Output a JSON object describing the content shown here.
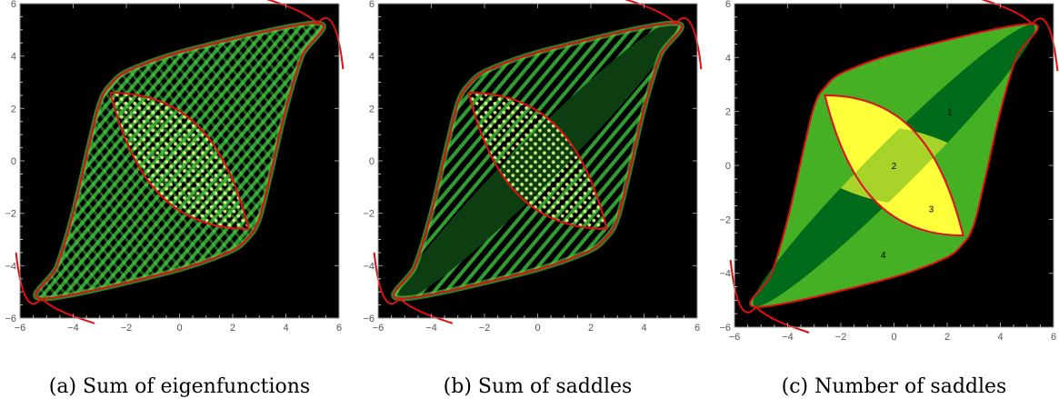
{
  "chart_data": [
    {
      "type": "heatmap",
      "caption": "(a) Sum of eigenfunctions",
      "xlim": [
        -6,
        6
      ],
      "ylim": [
        -6,
        6
      ],
      "xticks": [
        -6,
        -4,
        -2,
        0,
        2,
        4,
        6
      ],
      "yticks": [
        -6,
        -4,
        -2,
        0,
        2,
        4,
        6
      ],
      "background": "#000000",
      "fringe_color": "#4fd24a",
      "caustic_color": "#e01010",
      "outer_caustic": [
        [
          5.2,
          5.25
        ],
        [
          0.6,
          4.3
        ],
        [
          -1.8,
          3.5
        ],
        [
          -2.6,
          2.9
        ],
        [
          -3.0,
          2.2
        ],
        [
          -3.4,
          0.6
        ],
        [
          -4.0,
          -2.0
        ],
        [
          -4.6,
          -4.0
        ],
        [
          -5.2,
          -5.25
        ],
        [
          -0.6,
          -4.3
        ],
        [
          1.8,
          -3.5
        ],
        [
          2.6,
          -2.9
        ],
        [
          3.0,
          -2.2
        ],
        [
          3.4,
          -0.6
        ],
        [
          4.0,
          2.0
        ],
        [
          4.6,
          4.0
        ]
      ],
      "inner_caustic": [
        [
          -2.6,
          2.6
        ],
        [
          -1.6,
          2.2
        ],
        [
          0,
          1.2
        ],
        [
          1.3,
          -0.1
        ],
        [
          1.9,
          -1.0
        ],
        [
          2.6,
          -2.6
        ],
        [
          1.6,
          -2.2
        ],
        [
          0,
          -1.2
        ],
        [
          -1.3,
          0.1
        ],
        [
          -1.9,
          1.0
        ]
      ]
    },
    {
      "type": "heatmap",
      "caption": "(b) Sum of saddles",
      "xlim": [
        -6,
        6
      ],
      "ylim": [
        -6,
        6
      ],
      "xticks": [
        -6,
        -4,
        -2,
        0,
        2,
        4,
        6
      ],
      "yticks": [
        -6,
        -4,
        -2,
        0,
        2,
        4,
        6
      ],
      "background": "#000000",
      "fringe_color": "#4fd24a",
      "caustic_color": "#e01010"
    },
    {
      "type": "heatmap",
      "caption": "(c) Number of saddles",
      "xlim": [
        -6,
        6
      ],
      "ylim": [
        -6,
        6
      ],
      "xticks": [
        -6,
        -4,
        -2,
        0,
        2,
        4,
        6
      ],
      "yticks": [
        -6,
        -4,
        -2,
        0,
        2,
        4,
        6
      ],
      "background": "#000000",
      "caustic_color": "#e01010",
      "regions": [
        {
          "label": "1",
          "x": 2.1,
          "y": 2.0,
          "color": "#46b025"
        },
        {
          "label": "2",
          "x": 0.0,
          "y": 0.0,
          "color": "#a8d42a"
        },
        {
          "label": "3",
          "x": 1.4,
          "y": -1.6,
          "color": "#ffff3a"
        },
        {
          "label": "4",
          "x": -0.4,
          "y": -3.3,
          "color": "#46b025"
        }
      ],
      "band_color": "#006b1a"
    }
  ]
}
